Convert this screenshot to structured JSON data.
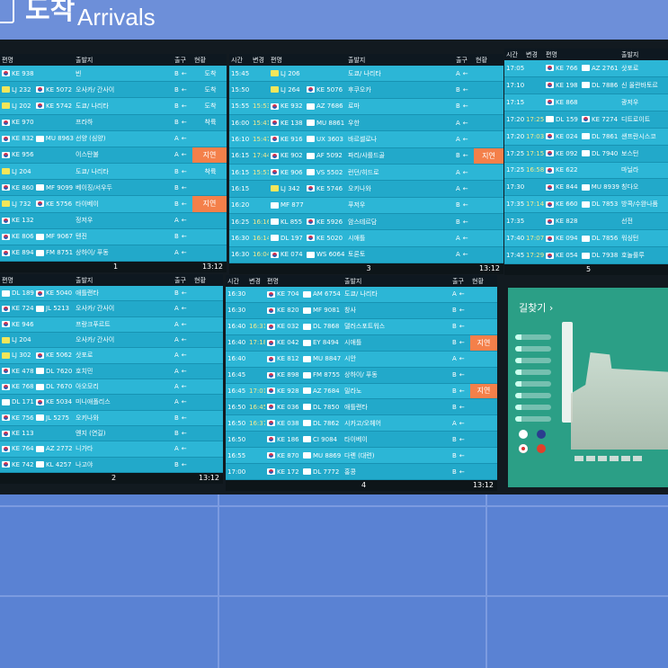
{
  "sign": {
    "korean": "도착",
    "english": "Arrivals"
  },
  "colors": {
    "row": "#2cb6d6",
    "row_alt": "#22a9ca",
    "delayed": "#f4804a",
    "header": "#0e1820"
  },
  "gate_arrow": "←",
  "panels": [
    {
      "id": "1",
      "type": "t1",
      "headers": [
        "편명",
        "",
        "출발지",
        "출구",
        "현황"
      ],
      "number": "1",
      "clock": "13:12",
      "rows": [
        [
          "KE 938",
          "",
          "빈",
          "B",
          "도착"
        ],
        [
          "LJ 232",
          "KE 5072",
          "오사카/ 간사이",
          "B",
          "도착"
        ],
        [
          "LJ 202",
          "KE 5742",
          "도쿄/ 나리타",
          "B",
          "도착"
        ],
        [
          "KE 970",
          "",
          "프라하",
          "B",
          "착륙"
        ],
        [
          "KE 832",
          "MU 8963",
          "선양 (심양)",
          "A",
          ""
        ],
        [
          "KE 956",
          "",
          "이스탄불",
          "A",
          "지연"
        ],
        [
          "LJ 204",
          "",
          "도쿄/ 나리타",
          "B",
          "착륙"
        ],
        [
          "KE 860",
          "MF 9099",
          "베이징/서우두",
          "B",
          ""
        ],
        [
          "LJ 732",
          "KE 5756",
          "타이베이",
          "B",
          "지연"
        ],
        [
          "KE 132",
          "",
          "정저우",
          "A",
          ""
        ],
        [
          "KE 806",
          "MF 9067",
          "텐진",
          "B",
          ""
        ],
        [
          "KE 894",
          "FM 8751",
          "상하이/ 푸동",
          "A",
          ""
        ]
      ]
    },
    {
      "id": "2",
      "type": "t1",
      "headers": [
        "편명",
        "",
        "출발지",
        "출구",
        "현황"
      ],
      "number": "2",
      "clock": "13:12",
      "rows": [
        [
          "DL 189",
          "KE 5040",
          "애틀랜타",
          "B",
          ""
        ],
        [
          "KE 724",
          "JL 5213",
          "오사카/ 간사이",
          "A",
          ""
        ],
        [
          "KE 946",
          "",
          "프랑크푸르트",
          "A",
          ""
        ],
        [
          "LJ 204",
          "",
          "오사카/ 간사이",
          "A",
          ""
        ],
        [
          "LJ 302",
          "KE 5062",
          "삿포로",
          "A",
          ""
        ],
        [
          "KE 478",
          "DL 7620",
          "호치민",
          "A",
          ""
        ],
        [
          "KE 768",
          "DL 7670",
          "아오모리",
          "A",
          ""
        ],
        [
          "DL 171",
          "KE 5034",
          "미니애폴리스",
          "A",
          ""
        ],
        [
          "KE 756",
          "JL 5275",
          "오키나와",
          "B",
          ""
        ],
        [
          "KE 113",
          "",
          "옌지 (연길)",
          "B",
          ""
        ],
        [
          "KE 764",
          "AZ 2772",
          "니가타",
          "A",
          ""
        ],
        [
          "KE 742",
          "KL 4257",
          "나고야",
          "B",
          ""
        ]
      ]
    },
    {
      "id": "3",
      "type": "t3",
      "headers": [
        "시간",
        "변경",
        "편명",
        "",
        "출발지",
        "출구",
        "현황"
      ],
      "number": "3",
      "clock": "13:12",
      "rows": [
        [
          "15:45",
          "",
          "LJ 206",
          "",
          "도쿄/ 나리타",
          "A",
          ""
        ],
        [
          "15:50",
          "",
          "LJ 264",
          "KE 5076",
          "후쿠오카",
          "B",
          ""
        ],
        [
          "15:55",
          "15:53",
          "KE 932",
          "AZ 7686",
          "로마",
          "B",
          ""
        ],
        [
          "16:00",
          "15:41",
          "KE 138",
          "MU 8861",
          "우한",
          "A",
          ""
        ],
        [
          "16:10",
          "15:47",
          "KE 916",
          "UX 3603",
          "바르셀로나",
          "A",
          ""
        ],
        [
          "16:15",
          "17:44",
          "KE 902",
          "AF 5092",
          "파리/샤를드골",
          "B",
          "지연"
        ],
        [
          "16:15",
          "15:51",
          "KE 906",
          "VS 5502",
          "런던/히드로",
          "A",
          ""
        ],
        [
          "16:15",
          "",
          "LJ 342",
          "KE 5746",
          "오키나와",
          "A",
          ""
        ],
        [
          "16:20",
          "",
          "MF 877",
          "",
          "푸저우",
          "B",
          ""
        ],
        [
          "16:25",
          "16:16",
          "KL 855",
          "KE 5926",
          "암스테르담",
          "B",
          ""
        ],
        [
          "16:30",
          "16:14",
          "DL 197",
          "KE 5020",
          "시애틀",
          "A",
          ""
        ],
        [
          "16:30",
          "16:04",
          "KE 074",
          "WS 6064",
          "토론토",
          "A",
          ""
        ]
      ]
    },
    {
      "id": "4",
      "type": "t3",
      "headers": [
        "시간",
        "변경",
        "편명",
        "",
        "출발지",
        "출구",
        "현황"
      ],
      "number": "4",
      "clock": "13:12",
      "rows": [
        [
          "16:30",
          "",
          "KE 704",
          "AM 6754",
          "도쿄/ 나리타",
          "A",
          ""
        ],
        [
          "16:30",
          "",
          "KE 820",
          "MF 9081",
          "창사",
          "B",
          ""
        ],
        [
          "16:40",
          "16:31",
          "KE 032",
          "DL 7868",
          "댈러스포트워스",
          "B",
          ""
        ],
        [
          "16:40",
          "17:18",
          "KE 042",
          "EY 8494",
          "시애틀",
          "B",
          "지연"
        ],
        [
          "16:40",
          "",
          "KE 812",
          "MU 8847",
          "시안",
          "A",
          ""
        ],
        [
          "16:45",
          "",
          "KE 898",
          "FM 8755",
          "상하이/ 푸동",
          "B",
          ""
        ],
        [
          "16:45",
          "17:01",
          "KE 928",
          "AZ 7684",
          "밀라노",
          "B",
          "지연"
        ],
        [
          "16:50",
          "16:45",
          "KE 036",
          "DL 7850",
          "애틀랜타",
          "B",
          ""
        ],
        [
          "16:50",
          "16:37",
          "KE 038",
          "DL 7862",
          "시카고/오헤어",
          "A",
          ""
        ],
        [
          "16:50",
          "",
          "KE 186",
          "CI 9084",
          "타이베이",
          "B",
          ""
        ],
        [
          "16:55",
          "",
          "KE 870",
          "MU 8869",
          "다롄 (대련)",
          "B",
          ""
        ],
        [
          "17:00",
          "",
          "KE 172",
          "DL 7772",
          "홍콩",
          "B",
          ""
        ]
      ]
    },
    {
      "id": "5",
      "type": "t5",
      "headers": [
        "시간",
        "변경",
        "편명",
        "",
        "출발지"
      ],
      "number": "5",
      "clock": "",
      "rows": [
        [
          "17:05",
          "",
          "KE 766",
          "AZ 2761",
          "삿포로"
        ],
        [
          "17:10",
          "",
          "KE 198",
          "DL 7886",
          "신 올란바토르"
        ],
        [
          "17:15",
          "",
          "KE 868",
          "",
          "광저우"
        ],
        [
          "17:20",
          "17:25",
          "DL 159",
          "KE 7274",
          "디트로이트"
        ],
        [
          "17:20",
          "17:03",
          "KE 024",
          "DL 7861",
          "샌프란시스코"
        ],
        [
          "17:25",
          "17:15",
          "KE 092",
          "DL 7940",
          "보스턴"
        ],
        [
          "17:25",
          "16:58",
          "KE 622",
          "",
          "마닐라"
        ],
        [
          "17:30",
          "",
          "KE 844",
          "MU 8939",
          "칭다오"
        ],
        [
          "17:35",
          "17:14",
          "KE 660",
          "DL 7853",
          "방콕/수완나품"
        ],
        [
          "17:35",
          "",
          "KE 828",
          "",
          "선전"
        ],
        [
          "17:40",
          "17:07",
          "KE 094",
          "DL 7856",
          "워싱턴"
        ],
        [
          "17:45",
          "17:29",
          "KE 054",
          "DL 7938",
          "호놀룰루"
        ]
      ]
    }
  ],
  "map": {
    "title": "길찾기",
    "chevron": "›"
  }
}
